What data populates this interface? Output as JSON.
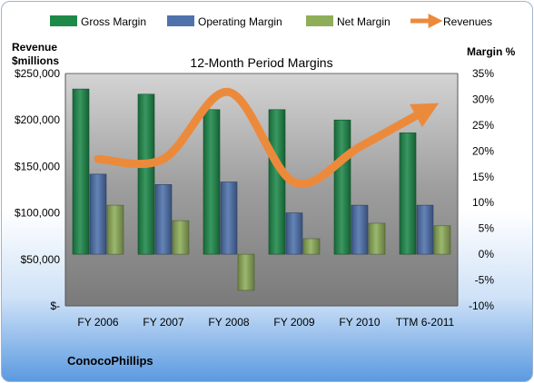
{
  "company": "ConocoPhillips",
  "colors": {
    "gross": "#1e8a4a",
    "operating": "#4f72ad",
    "net": "#8fae5a",
    "revenues": "#ec8a3c"
  },
  "chart_data": {
    "type": "bar",
    "title": "12-Month Period Margins",
    "ylabel_left": "Revenue $millions",
    "ylabel_left_lines": [
      "Revenue",
      "$millions"
    ],
    "ylabel_right": "Margin %",
    "categories": [
      "FY 2006",
      "FY 2007",
      "FY 2008",
      "FY 2009",
      "FY 2010",
      "TTM 6-2011"
    ],
    "left_axis": {
      "min": 0,
      "max": 250000,
      "step": 50000,
      "tick_labels": [
        "$-",
        "$50,000",
        "$100,000",
        "$150,000",
        "$200,000",
        "$250,000"
      ]
    },
    "right_axis": {
      "min": -10,
      "max": 35,
      "step": 5,
      "tick_labels": [
        "-10%",
        "-5%",
        "0%",
        "5%",
        "10%",
        "15%",
        "20%",
        "25%",
        "30%",
        "35%"
      ]
    },
    "series": [
      {
        "name": "Gross Margin",
        "axis": "right",
        "kind": "bar",
        "values": [
          32,
          31,
          28,
          28,
          26,
          23.5
        ]
      },
      {
        "name": "Operating Margin",
        "axis": "right",
        "kind": "bar",
        "values": [
          15.5,
          13.5,
          14,
          8,
          9.5,
          9.5
        ]
      },
      {
        "name": "Net Margin",
        "axis": "right",
        "kind": "bar",
        "values": [
          9.5,
          6.5,
          -7,
          3,
          6,
          5.5
        ]
      },
      {
        "name": "Revenues",
        "axis": "left",
        "kind": "line",
        "values": [
          158000,
          158000,
          230000,
          133000,
          171000,
          210000
        ]
      }
    ],
    "legend_position": "top",
    "grid": false
  }
}
